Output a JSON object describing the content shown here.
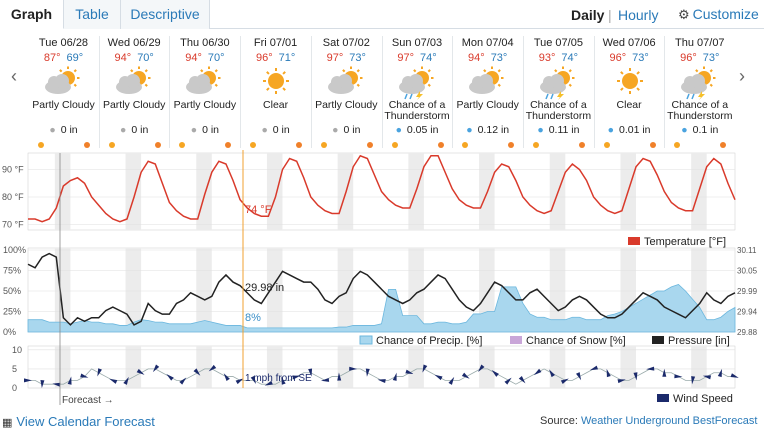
{
  "tabs": [
    {
      "label": "Graph"
    },
    {
      "label": "Table"
    },
    {
      "label": "Descriptive"
    }
  ],
  "view": {
    "daily": "Daily",
    "separator": "|",
    "hourly": "Hourly",
    "customize": "Customize"
  },
  "nav": {
    "prev": "‹",
    "next": "›"
  },
  "days": [
    {
      "date": "Tue 06/28",
      "high": "87°",
      "low": "69°",
      "icon": "partly-cloudy-icon",
      "condition": "Partly Cloudy",
      "precip": "0 in"
    },
    {
      "date": "Wed 06/29",
      "high": "94°",
      "low": "70°",
      "icon": "partly-cloudy-icon",
      "condition": "Partly Cloudy",
      "precip": "0 in"
    },
    {
      "date": "Thu 06/30",
      "high": "94°",
      "low": "70°",
      "icon": "partly-cloudy-icon",
      "condition": "Partly Cloudy",
      "precip": "0 in"
    },
    {
      "date": "Fri 07/01",
      "high": "96°",
      "low": "71°",
      "icon": "clear-sun-icon",
      "condition": "Clear",
      "precip": "0 in"
    },
    {
      "date": "Sat 07/02",
      "high": "97°",
      "low": "73°",
      "icon": "partly-cloudy-icon",
      "condition": "Partly Cloudy",
      "precip": "0 in"
    },
    {
      "date": "Sun 07/03",
      "high": "97°",
      "low": "74°",
      "icon": "thunderstorm-icon",
      "condition": "Chance of a Thunderstorm",
      "precip": "0.05 in"
    },
    {
      "date": "Mon 07/04",
      "high": "94°",
      "low": "73°",
      "icon": "partly-cloudy-icon",
      "condition": "Partly Cloudy",
      "precip": "0.12 in"
    },
    {
      "date": "Tue 07/05",
      "high": "93°",
      "low": "74°",
      "icon": "thunderstorm-icon",
      "condition": "Chance of a Thunderstorm",
      "precip": "0.11 in"
    },
    {
      "date": "Wed 07/06",
      "high": "96°",
      "low": "73°",
      "icon": "clear-sun-icon",
      "condition": "Clear",
      "precip": "0.01 in"
    },
    {
      "date": "Thu 07/07",
      "high": "96°",
      "low": "73°",
      "icon": "thunderstorm-icon",
      "condition": "Chance of a Thunderstorm",
      "precip": "0.1 in"
    }
  ],
  "cursor": {
    "time": "1 am",
    "temperature": "74 °F",
    "pressure": "29.98 in",
    "precip_chance": "8%",
    "wind": "1 mph from SE"
  },
  "forecast_label": "Forecast →",
  "colors": {
    "temperature": "#d93a2b",
    "precip": "#a9d7ee",
    "snow": "#c9a6d8",
    "pressure": "#222222",
    "wind": "#1b2a6b",
    "cursor": "#f0a030",
    "accent": "#2a7ab8"
  },
  "chart_data": [
    {
      "type": "line",
      "name": "temperature",
      "title": "",
      "ylabel": "°F",
      "y_ticks": [
        "90 °F",
        "80 °F",
        "70 °F"
      ],
      "ylim": [
        68,
        96
      ],
      "x_range_days": [
        0,
        10
      ],
      "x": [
        0,
        0.1,
        0.2,
        0.3,
        0.4,
        0.5,
        0.6,
        0.7,
        0.8,
        0.9,
        1.0,
        1.1,
        1.2,
        1.3,
        1.4,
        1.5,
        1.6,
        1.7,
        1.8,
        1.9,
        2.0,
        2.1,
        2.2,
        2.3,
        2.4,
        2.5,
        2.6,
        2.7,
        2.8,
        2.9,
        3.0,
        3.1,
        3.2,
        3.3,
        3.4,
        3.5,
        3.6,
        3.7,
        3.8,
        3.9,
        4.0,
        4.1,
        4.2,
        4.3,
        4.4,
        4.5,
        4.6,
        4.7,
        4.8,
        4.9,
        5.0,
        5.1,
        5.2,
        5.3,
        5.4,
        5.5,
        5.6,
        5.7,
        5.8,
        5.9,
        6.0,
        6.1,
        6.2,
        6.3,
        6.4,
        6.5,
        6.6,
        6.7,
        6.8,
        6.9,
        7.0,
        7.1,
        7.2,
        7.3,
        7.4,
        7.5,
        7.6,
        7.7,
        7.8,
        7.9,
        8.0,
        8.1,
        8.2,
        8.3,
        8.4,
        8.5,
        8.6,
        8.7,
        8.8,
        8.9,
        9.0,
        9.1,
        9.2,
        9.3,
        9.4,
        9.5,
        9.6,
        9.7,
        9.8,
        9.9,
        10.0
      ],
      "legend": [
        "Temperature [°F]"
      ],
      "values": [
        72,
        72,
        71,
        72,
        76,
        84,
        86,
        87,
        85,
        80,
        77,
        74,
        72,
        71,
        72,
        80,
        89,
        93,
        92,
        85,
        78,
        75,
        73,
        72,
        72,
        81,
        89,
        93,
        92,
        86,
        79,
        76,
        74,
        73,
        73,
        80,
        90,
        94,
        93,
        87,
        80,
        77,
        75,
        74,
        74,
        82,
        91,
        95,
        94,
        88,
        82,
        79,
        77,
        76,
        76,
        83,
        91,
        95,
        95,
        89,
        83,
        79,
        77,
        76,
        76,
        82,
        89,
        92,
        91,
        86,
        80,
        77,
        75,
        74,
        75,
        82,
        89,
        92,
        90,
        86,
        80,
        77,
        75,
        74,
        75,
        83,
        91,
        94,
        93,
        88,
        82,
        78,
        76,
        75,
        75,
        83,
        91,
        94,
        92,
        85,
        79
      ]
    },
    {
      "type": "area",
      "name": "precip_pressure",
      "y_ticks_left": [
        "100%",
        "75%",
        "50%",
        "25%",
        "0%"
      ],
      "y_ticks_right": [
        "30.11",
        "30.05",
        "29.99",
        "29.94",
        "29.88"
      ],
      "ylim_left": [
        0,
        100
      ],
      "ylim_right": [
        29.88,
        30.11
      ],
      "legend": [
        "Chance of Precip. [%]",
        "Chance of Snow [%]",
        "Pressure [in]"
      ],
      "precip_values": [
        15,
        15,
        15,
        12,
        12,
        12,
        10,
        12,
        14,
        12,
        12,
        10,
        10,
        8,
        8,
        12,
        15,
        14,
        12,
        12,
        10,
        10,
        10,
        10,
        12,
        14,
        12,
        10,
        8,
        8,
        8,
        5,
        5,
        5,
        5,
        5,
        5,
        5,
        5,
        5,
        5,
        5,
        5,
        5,
        6,
        6,
        8,
        8,
        8,
        8,
        10,
        52,
        52,
        20,
        20,
        20,
        10,
        10,
        12,
        12,
        10,
        10,
        12,
        22,
        22,
        25,
        25,
        55,
        55,
        55,
        35,
        22,
        18,
        18,
        15,
        15,
        15,
        18,
        18,
        15,
        15,
        15,
        20,
        22,
        25,
        30,
        35,
        40,
        45,
        50,
        50,
        55,
        58,
        50,
        40,
        30,
        15,
        15,
        18,
        25,
        30
      ],
      "pressure_values": [
        30.07,
        30.06,
        30.09,
        30.1,
        30.09,
        29.92,
        29.9,
        29.92,
        29.91,
        29.92,
        29.92,
        29.94,
        29.95,
        29.94,
        29.93,
        29.9,
        29.91,
        29.96,
        29.94,
        29.93,
        29.93,
        29.96,
        29.97,
        29.99,
        29.98,
        29.97,
        29.98,
        30.02,
        30.04,
        30.02,
        30.01,
        29.99,
        29.97,
        29.96,
        29.99,
        30.02,
        30.05,
        30.04,
        30.03,
        30.02,
        30.02,
        30.0,
        29.97,
        29.96,
        29.98,
        29.99,
        30.03,
        30.05,
        30.04,
        30.02,
        30.0,
        29.98,
        29.97,
        29.96,
        29.97,
        29.99,
        30.0,
        30.02,
        30.04,
        30.03,
        30.0,
        29.97,
        29.95,
        29.94,
        29.96,
        29.99,
        30.02,
        30.01,
        29.99,
        29.97,
        29.97,
        29.99,
        30.0,
        29.98,
        29.96,
        29.94,
        29.95,
        29.97,
        29.98,
        29.97,
        29.95,
        29.93,
        29.92,
        29.92,
        29.93,
        29.95,
        29.97,
        29.99,
        29.98,
        29.97,
        29.95,
        29.94,
        29.93,
        29.92,
        29.94,
        29.96,
        29.99,
        29.97,
        29.96,
        29.98,
        29.99
      ]
    },
    {
      "type": "line",
      "name": "wind",
      "y_ticks": [
        "10",
        "5",
        "0"
      ],
      "ylim": [
        0,
        11
      ],
      "legend": [
        "Wind Speed"
      ],
      "values": [
        2,
        2,
        1,
        1,
        1,
        1,
        2,
        2,
        3,
        5,
        4,
        3,
        2,
        2,
        2,
        3,
        4,
        5,
        5,
        4,
        3,
        2,
        2,
        3,
        4,
        5,
        5,
        4,
        3,
        3,
        2,
        2,
        2,
        1,
        1,
        1,
        2,
        2,
        3,
        4,
        4,
        3,
        2,
        3,
        3,
        4,
        5,
        5,
        4,
        3,
        2,
        2,
        3,
        3,
        4,
        5,
        5,
        4,
        3,
        2,
        2,
        2,
        3,
        4,
        5,
        5,
        4,
        3,
        2,
        1,
        2,
        3,
        4,
        5,
        4,
        3,
        2,
        2,
        3,
        4,
        5,
        5,
        4,
        3,
        2,
        2,
        3,
        4,
        5,
        5,
        4,
        4,
        3,
        2,
        2,
        2,
        3,
        4,
        4,
        3,
        3
      ]
    }
  ],
  "footer": {
    "calendar_link": "View Calendar Forecast",
    "source_prefix": "Source:",
    "source_name": "Weather Underground BestForecast"
  }
}
